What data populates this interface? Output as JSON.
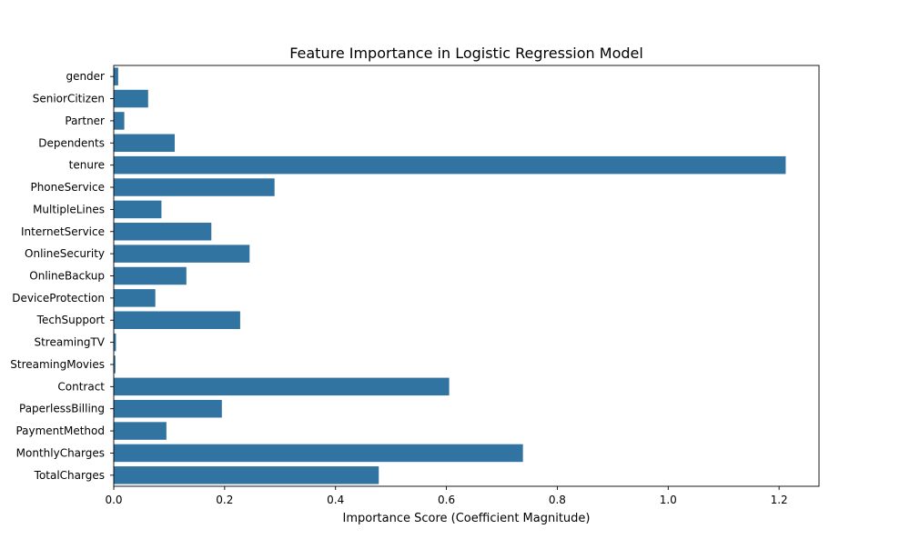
{
  "chart_data": {
    "type": "bar",
    "orientation": "horizontal",
    "title": "Feature Importance in Logistic Regression Model",
    "xlabel": "Importance Score (Coefficient Magnitude)",
    "ylabel": "",
    "xlim": [
      0,
      1.272
    ],
    "xticks": [
      "0.0",
      "0.2",
      "0.4",
      "0.6",
      "0.8",
      "1.0",
      "1.2"
    ],
    "grid": false,
    "legend": "none",
    "bar_color": "#3274a1",
    "categories": [
      "gender",
      "SeniorCitizen",
      "Partner",
      "Dependents",
      "tenure",
      "PhoneService",
      "MultipleLines",
      "InternetService",
      "OnlineSecurity",
      "OnlineBackup",
      "DeviceProtection",
      "TechSupport",
      "StreamingTV",
      "StreamingMovies",
      "Contract",
      "PaperlessBilling",
      "PaymentMethod",
      "MonthlyCharges",
      "TotalCharges"
    ],
    "values": [
      0.008,
      0.062,
      0.019,
      0.11,
      1.212,
      0.29,
      0.086,
      0.176,
      0.245,
      0.131,
      0.075,
      0.228,
      0.004,
      0.003,
      0.605,
      0.195,
      0.095,
      0.738,
      0.478
    ]
  }
}
